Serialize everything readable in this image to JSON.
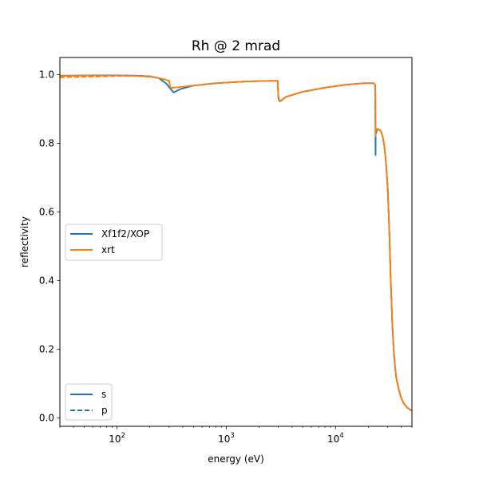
{
  "chart_data": {
    "type": "line",
    "title": "Rh @ 2 mrad",
    "xlabel": "energy (eV)",
    "ylabel": "reflectivity",
    "xscale": "log",
    "xlim": [
      30,
      50000
    ],
    "ylim": [
      -0.025,
      1.05
    ],
    "grid": false,
    "x_ticks": [
      {
        "value": 100,
        "base": "10",
        "exp": "2"
      },
      {
        "value": 1000,
        "base": "10",
        "exp": "3"
      },
      {
        "value": 10000,
        "base": "10",
        "exp": "4"
      }
    ],
    "y_ticks": [
      {
        "value": 0.0,
        "label": "0.0"
      },
      {
        "value": 0.2,
        "label": "0.2"
      },
      {
        "value": 0.4,
        "label": "0.4"
      },
      {
        "value": 0.6,
        "label": "0.6"
      },
      {
        "value": 0.8,
        "label": "0.8"
      },
      {
        "value": 1.0,
        "label": "1.0"
      }
    ],
    "legend_sources": {
      "placement": "center-left",
      "entries": [
        {
          "label": "Xf1f2/XOP",
          "color": "#1f77b4"
        },
        {
          "label": "xrt",
          "color": "#ff7f0e"
        }
      ]
    },
    "legend_polarization": {
      "placement": "lower-left",
      "entries": [
        {
          "label": "s",
          "style": "solid"
        },
        {
          "label": "p",
          "style": "dashed"
        }
      ]
    },
    "series": [
      {
        "source": "Xf1f2/XOP",
        "polarization": "s",
        "color": "#1f77b4",
        "style": "solid",
        "x": [
          30,
          60,
          100,
          150,
          200,
          240,
          280,
          310,
          330,
          380,
          500,
          800,
          1500,
          2500,
          2950,
          3000,
          3050,
          3100,
          3200,
          3500,
          5000,
          8000,
          12000,
          18000,
          22500,
          23100,
          23220,
          23300,
          24000,
          25000,
          26000,
          27000,
          28000,
          29000,
          30000,
          31000,
          32000,
          33000,
          34000,
          35000,
          36000,
          38000,
          40000,
          42000,
          45000,
          50000
        ],
        "y": [
          0.997,
          0.998,
          0.998,
          0.997,
          0.995,
          0.99,
          0.975,
          0.958,
          0.948,
          0.958,
          0.968,
          0.975,
          0.98,
          0.982,
          0.982,
          0.93,
          0.925,
          0.922,
          0.925,
          0.935,
          0.95,
          0.962,
          0.97,
          0.975,
          0.975,
          0.97,
          0.765,
          0.825,
          0.84,
          0.84,
          0.835,
          0.82,
          0.79,
          0.74,
          0.67,
          0.55,
          0.4,
          0.28,
          0.2,
          0.15,
          0.115,
          0.08,
          0.057,
          0.042,
          0.03,
          0.02
        ]
      },
      {
        "source": "Xf1f2/XOP",
        "polarization": "p",
        "color": "#1f77b4",
        "style": "dashed",
        "x": [
          30,
          60,
          100,
          150,
          200,
          240,
          280,
          310,
          330,
          380,
          500,
          800,
          1500,
          2500,
          2950,
          3000,
          3050,
          3100,
          3200,
          3500,
          5000,
          8000,
          12000,
          18000,
          22500,
          23100,
          23220,
          23300,
          24000,
          25000,
          26000,
          27000,
          28000,
          29000,
          30000,
          31000,
          32000,
          33000,
          34000,
          35000,
          36000,
          38000,
          40000,
          42000,
          45000,
          50000
        ],
        "y": [
          0.993,
          0.995,
          0.997,
          0.997,
          0.995,
          0.99,
          0.975,
          0.958,
          0.948,
          0.958,
          0.968,
          0.975,
          0.98,
          0.982,
          0.982,
          0.93,
          0.925,
          0.922,
          0.925,
          0.935,
          0.95,
          0.962,
          0.97,
          0.975,
          0.975,
          0.97,
          0.765,
          0.825,
          0.84,
          0.84,
          0.835,
          0.82,
          0.79,
          0.74,
          0.67,
          0.55,
          0.4,
          0.28,
          0.2,
          0.15,
          0.115,
          0.08,
          0.057,
          0.042,
          0.03,
          0.02
        ]
      },
      {
        "source": "xrt",
        "polarization": "s",
        "color": "#ff7f0e",
        "style": "solid",
        "x": [
          30,
          60,
          100,
          150,
          200,
          240,
          280,
          300,
          305,
          310,
          330,
          380,
          500,
          800,
          1500,
          2500,
          2950,
          3000,
          3050,
          3100,
          3200,
          3500,
          5000,
          8000,
          12000,
          18000,
          22500,
          23100,
          23220,
          23300,
          24000,
          25000,
          26000,
          27000,
          28000,
          29000,
          30000,
          31000,
          32000,
          33000,
          34000,
          35000,
          36000,
          38000,
          40000,
          42000,
          45000,
          50000
        ],
        "y": [
          0.996,
          0.997,
          0.997,
          0.996,
          0.994,
          0.99,
          0.985,
          0.982,
          0.965,
          0.962,
          0.962,
          0.964,
          0.968,
          0.975,
          0.98,
          0.982,
          0.982,
          0.935,
          0.928,
          0.922,
          0.925,
          0.935,
          0.95,
          0.962,
          0.97,
          0.975,
          0.975,
          0.97,
          0.82,
          0.835,
          0.842,
          0.84,
          0.835,
          0.82,
          0.79,
          0.74,
          0.67,
          0.55,
          0.4,
          0.28,
          0.2,
          0.15,
          0.115,
          0.08,
          0.057,
          0.042,
          0.03,
          0.02
        ]
      },
      {
        "source": "xrt",
        "polarization": "p",
        "color": "#ff7f0e",
        "style": "dashed",
        "x": [
          30,
          60,
          100,
          150,
          200,
          240,
          280,
          300,
          305,
          310,
          330,
          380,
          500,
          800,
          1500,
          2500,
          2950,
          3000,
          3050,
          3100,
          3200,
          3500,
          5000,
          8000,
          12000,
          18000,
          22500,
          23100,
          23220,
          23300,
          24000,
          25000,
          26000,
          27000,
          28000,
          29000,
          30000,
          31000,
          32000,
          33000,
          34000,
          35000,
          36000,
          38000,
          40000,
          42000,
          45000,
          50000
        ],
        "y": [
          0.992,
          0.994,
          0.996,
          0.996,
          0.994,
          0.99,
          0.985,
          0.982,
          0.965,
          0.962,
          0.962,
          0.964,
          0.968,
          0.975,
          0.98,
          0.982,
          0.982,
          0.935,
          0.928,
          0.922,
          0.925,
          0.935,
          0.95,
          0.962,
          0.97,
          0.975,
          0.975,
          0.97,
          0.82,
          0.835,
          0.842,
          0.84,
          0.835,
          0.82,
          0.79,
          0.74,
          0.67,
          0.55,
          0.4,
          0.28,
          0.2,
          0.15,
          0.115,
          0.08,
          0.057,
          0.042,
          0.03,
          0.02
        ]
      }
    ]
  }
}
